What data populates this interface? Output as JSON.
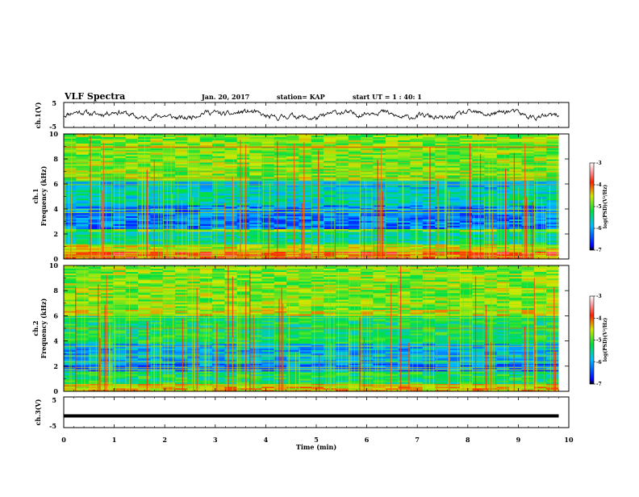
{
  "header": {
    "title": "VLF Spectra",
    "date": "Jan. 20, 2017",
    "station": "station= KAP",
    "start": "start  UT =   1 : 40: 1"
  },
  "chart_data": {
    "type": "heatmap",
    "time_axis": {
      "label": "Time  (min)",
      "range": [
        0,
        10
      ],
      "ticks": [
        "0",
        "1",
        "2",
        "3",
        "4",
        "5",
        "6",
        "7",
        "8",
        "9",
        "10"
      ]
    },
    "panels": [
      {
        "id": "ch1_waveform",
        "type": "line",
        "ylabel": "ch.1(V)",
        "ylim": [
          -5,
          5
        ],
        "yticks": [
          "5",
          "-5"
        ],
        "series": {
          "x_range_min": [
            0,
            9.8
          ],
          "trace_color": "#000000",
          "amplitude_band": [
            -1.5,
            1.5
          ]
        }
      },
      {
        "id": "ch1_spectrogram",
        "type": "heatmap",
        "ylabel_top": "ch.1",
        "ylabel": "Frequency  (kHz)",
        "ylim": [
          0,
          10
        ],
        "yticks": [
          "0",
          "2",
          "4",
          "6",
          "8",
          "10"
        ],
        "colorbar": {
          "label": "log(PSD)(V²/Hz)",
          "range": [
            -7,
            -3
          ],
          "ticks": [
            "-3",
            "-4",
            "-5",
            "-6",
            "-7"
          ]
        },
        "dominant_log_psd_by_khz": [
          {
            "band": [
              0,
              0.6
            ],
            "value": -4.0
          },
          {
            "band": [
              0.6,
              1.2
            ],
            "value": -4.6
          },
          {
            "band": [
              1.2,
              2.2
            ],
            "value": -5.5
          },
          {
            "band": [
              2.2,
              2.4
            ],
            "value": -4.8
          },
          {
            "band": [
              2.4,
              4.3
            ],
            "value": -6.2
          },
          {
            "band": [
              4.3,
              5.6
            ],
            "value": -5.6
          },
          {
            "band": [
              5.6,
              6.3
            ],
            "value": -5.8
          },
          {
            "band": [
              6.3,
              10
            ],
            "value": -4.8
          }
        ]
      },
      {
        "id": "ch2_spectrogram",
        "type": "heatmap",
        "ylabel_top": "ch.2",
        "ylabel": "Frequency  (kHz)",
        "ylim": [
          0,
          10
        ],
        "yticks": [
          "0",
          "2",
          "4",
          "6",
          "8",
          "10"
        ],
        "colorbar": {
          "label": "log(PSD)(V²/Hz)",
          "range": [
            -7,
            -3
          ],
          "ticks": [
            "-3",
            "-4",
            "-5",
            "-6",
            "-7"
          ]
        },
        "dominant_log_psd_by_khz": [
          {
            "band": [
              0,
              0.6
            ],
            "value": -4.4
          },
          {
            "band": [
              0.6,
              1.6
            ],
            "value": -5.3
          },
          {
            "band": [
              1.6,
              2.2
            ],
            "value": -6.2
          },
          {
            "band": [
              2.2,
              3.8
            ],
            "value": -5.9
          },
          {
            "band": [
              3.8,
              6.0
            ],
            "value": -5.3
          },
          {
            "band": [
              6.0,
              6.5
            ],
            "value": -4.6
          },
          {
            "band": [
              6.5,
              10
            ],
            "value": -4.8
          }
        ]
      },
      {
        "id": "ch3_waveform",
        "type": "line",
        "ylabel": "ch.3(V)",
        "ylim": [
          -5,
          5
        ],
        "yticks": [
          "5",
          "-5"
        ],
        "series": {
          "x_range_min": [
            0,
            9.8
          ],
          "trace_color": "#000000",
          "level": -1.2
        }
      }
    ]
  }
}
